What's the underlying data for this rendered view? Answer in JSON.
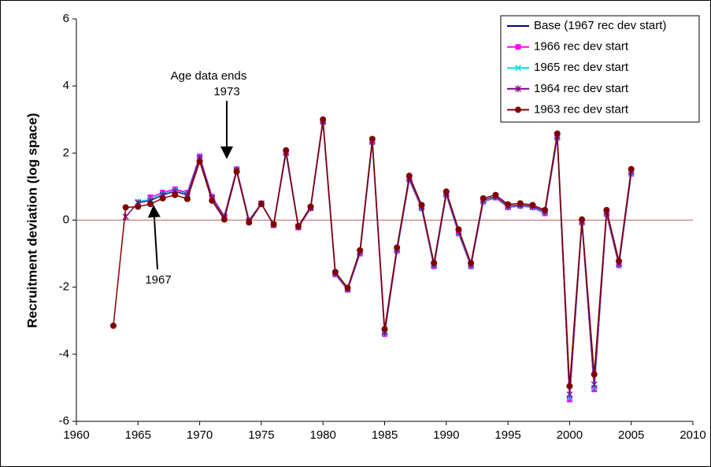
{
  "chart_data": {
    "type": "line",
    "y_label": "Recruitment deviation (log space)",
    "x": [
      1963,
      1964,
      1965,
      1966,
      1967,
      1968,
      1969,
      1970,
      1971,
      1972,
      1973,
      1974,
      1975,
      1976,
      1977,
      1978,
      1979,
      1980,
      1981,
      1982,
      1983,
      1984,
      1985,
      1986,
      1987,
      1988,
      1989,
      1990,
      1991,
      1992,
      1993,
      1994,
      1995,
      1996,
      1997,
      1998,
      1999,
      2000,
      2001,
      2002,
      2003,
      2004,
      2005
    ],
    "series": [
      {
        "name": "Base (1967 rec dev start)",
        "color": "#000080",
        "marker": "none",
        "values": [
          null,
          null,
          null,
          null,
          0.82,
          0.92,
          0.82,
          1.9,
          0.7,
          0.12,
          1.52,
          0.0,
          0.5,
          -0.15,
          2.0,
          -0.22,
          0.35,
          2.92,
          -1.62,
          -2.08,
          -1.0,
          2.32,
          -3.4,
          -0.92,
          1.2,
          0.35,
          -1.38,
          0.75,
          -0.4,
          -1.38,
          0.55,
          0.67,
          0.38,
          0.42,
          0.38,
          0.2,
          2.45,
          -5.35,
          -0.08,
          -5.05,
          0.18,
          -1.35,
          1.38
        ]
      },
      {
        "name": "1966 rec dev start",
        "color": "#ff00ff",
        "marker": "square",
        "values": [
          null,
          null,
          null,
          0.68,
          0.82,
          0.92,
          0.82,
          1.9,
          0.7,
          0.12,
          1.52,
          0.0,
          0.5,
          -0.15,
          2.0,
          -0.22,
          0.35,
          2.92,
          -1.62,
          -2.08,
          -1.0,
          2.32,
          -3.4,
          -0.92,
          1.2,
          0.35,
          -1.38,
          0.75,
          -0.4,
          -1.38,
          0.55,
          0.67,
          0.38,
          0.42,
          0.38,
          0.2,
          2.45,
          -5.35,
          -0.08,
          -5.05,
          0.18,
          -1.35,
          1.38
        ]
      },
      {
        "name": "1965 rec dev start",
        "color": "#00e0e0",
        "marker": "x",
        "values": [
          null,
          null,
          0.55,
          0.62,
          0.78,
          0.88,
          0.78,
          1.87,
          0.68,
          0.1,
          1.5,
          -0.02,
          0.5,
          -0.15,
          2.0,
          -0.2,
          0.36,
          2.93,
          -1.6,
          -2.07,
          -0.98,
          2.33,
          -3.38,
          -0.9,
          1.22,
          0.37,
          -1.36,
          0.77,
          -0.38,
          -1.36,
          0.57,
          0.68,
          0.4,
          0.43,
          0.39,
          0.22,
          2.47,
          -5.3,
          -0.06,
          -5.0,
          0.2,
          -1.33,
          1.4
        ]
      },
      {
        "name": "1964 rec dev start",
        "color": "#800080",
        "marker": "star",
        "values": [
          null,
          0.1,
          0.52,
          0.58,
          0.75,
          0.85,
          0.75,
          1.85,
          0.66,
          0.08,
          1.48,
          -0.04,
          0.49,
          -0.14,
          2.02,
          -0.2,
          0.37,
          2.95,
          -1.58,
          -2.05,
          -0.95,
          2.36,
          -3.35,
          -0.87,
          1.25,
          0.4,
          -1.33,
          0.8,
          -0.34,
          -1.33,
          0.6,
          0.7,
          0.42,
          0.45,
          0.41,
          0.25,
          2.5,
          -5.2,
          -0.04,
          -4.9,
          0.23,
          -1.3,
          1.44
        ]
      },
      {
        "name": "1963 rec dev start",
        "color": "#800000",
        "marker": "circle",
        "values": [
          -3.15,
          0.38,
          0.4,
          0.48,
          0.65,
          0.75,
          0.63,
          1.75,
          0.58,
          0.02,
          1.45,
          -0.07,
          0.48,
          -0.12,
          2.08,
          -0.18,
          0.4,
          3.0,
          -1.55,
          -2.02,
          -0.9,
          2.42,
          -3.25,
          -0.82,
          1.32,
          0.45,
          -1.28,
          0.85,
          -0.28,
          -1.28,
          0.65,
          0.75,
          0.47,
          0.5,
          0.45,
          0.3,
          2.58,
          -4.95,
          0.02,
          -4.6,
          0.3,
          -1.22,
          1.52
        ]
      }
    ],
    "xlim": [
      1960,
      2010
    ],
    "xticks": [
      1960,
      1965,
      1970,
      1975,
      1980,
      1985,
      1990,
      1995,
      2000,
      2005,
      2010
    ],
    "ylim": [
      -6,
      6
    ],
    "yticks": [
      -6,
      -4,
      -2,
      0,
      2,
      4,
      6
    ],
    "reference_line": 0,
    "reference_color": "#c06060",
    "legend": "top-right",
    "annotations": [
      "Age data ends",
      "1973",
      "1967"
    ]
  }
}
